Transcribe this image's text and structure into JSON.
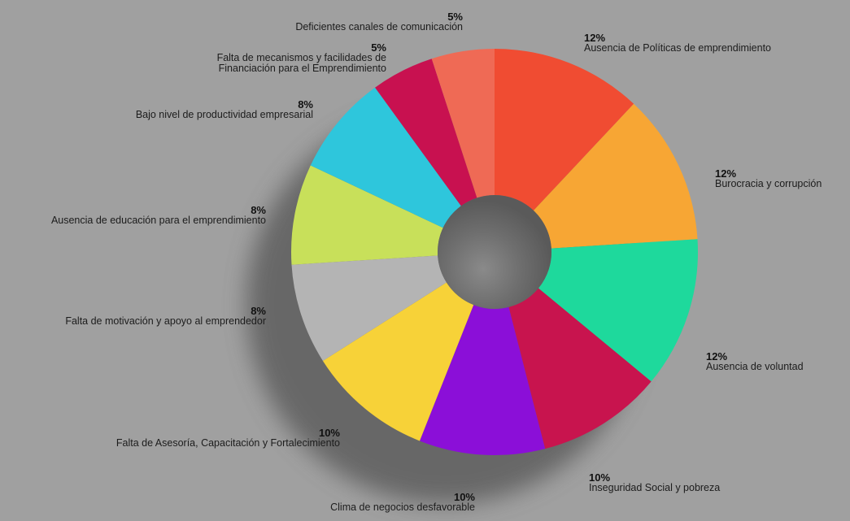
{
  "chart_data": {
    "type": "pie",
    "variant": "donut",
    "start_angle_deg": 0,
    "direction": "clockwise",
    "slices": [
      {
        "label": "Ausencia de Políticas de emprendimiento",
        "value": 12,
        "value_label": "12%",
        "color": "#f04c32"
      },
      {
        "label": "Burocracia y corrupción",
        "value": 12,
        "value_label": "12%",
        "color": "#f7a634"
      },
      {
        "label": "Ausencia de voluntad",
        "value": 12,
        "value_label": "12%",
        "color": "#1ed99c"
      },
      {
        "label": "Inseguridad Social y pobreza",
        "value": 10,
        "value_label": "10%",
        "color": "#c8144e"
      },
      {
        "label": "Clima de negocios desfavorable",
        "value": 10,
        "value_label": "10%",
        "color": "#8b0fd8"
      },
      {
        "label": "Falta de Asesoría, Capacitación y Fortalecimiento",
        "value": 10,
        "value_label": "10%",
        "color": "#f7d238"
      },
      {
        "label": "Falta de motivación y apoyo al emprendedor",
        "value": 8,
        "value_label": "8%",
        "color": "#b4b4b4"
      },
      {
        "label": "Ausencia de educación para el emprendimiento",
        "value": 8,
        "value_label": "8%",
        "color": "#c8e05a"
      },
      {
        "label": "Bajo nivel de productividad empresarial",
        "value": 8,
        "value_label": "8%",
        "color": "#2ec6dc"
      },
      {
        "label": "Falta de mecanismos y facilidades de Financiación para el Emprendimiento",
        "value": 5,
        "value_label": "5%",
        "color": "#c81150"
      },
      {
        "label": "Deficientes canales de comunicación",
        "value": 5,
        "value_label": "5%",
        "color": "#ef6a55"
      }
    ],
    "center_hole_color": "#6a6a6a",
    "background_color": "#a0a0a0"
  }
}
